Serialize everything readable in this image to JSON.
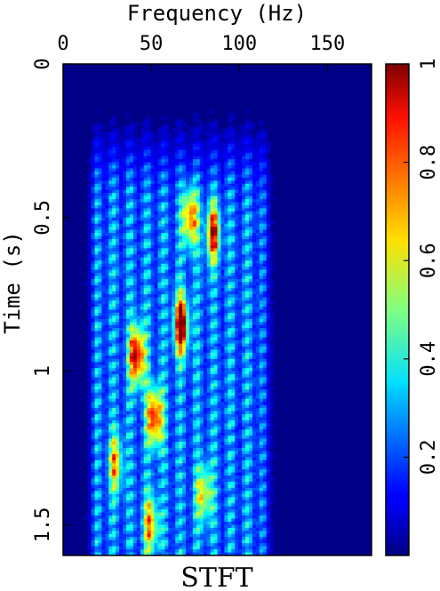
{
  "chart_data": {
    "type": "heatmap",
    "title": "STFT",
    "xlabel": "Frequency (Hz)",
    "ylabel": "Time (s)",
    "x_axis_position": "top",
    "xlim": [
      0,
      175
    ],
    "ylim": [
      1.6,
      0
    ],
    "x_ticks": [
      0,
      50,
      100,
      150
    ],
    "x_tick_labels": [
      "0",
      "50",
      "100",
      "150"
    ],
    "y_ticks": [
      0,
      0.5,
      1,
      1.5
    ],
    "y_tick_labels": [
      "0",
      "0.5",
      "1",
      "1.5"
    ],
    "colorbar": {
      "range": [
        0,
        1
      ],
      "ticks": [
        0.2,
        0.4,
        0.6,
        0.8,
        1
      ],
      "tick_labels": [
        "0.2",
        "0.4",
        "0.6",
        "0.8",
        "1"
      ],
      "colormap": "jet"
    },
    "energy_extent": {
      "freq_hz": [
        20,
        110
      ],
      "time_s": [
        0.3,
        1.6
      ]
    },
    "hotspots": [
      {
        "freq_hz": 42,
        "time_s": 0.95,
        "value": 1.0
      },
      {
        "freq_hz": 52,
        "time_s": 1.15,
        "value": 0.9
      },
      {
        "freq_hz": 67,
        "time_s": 0.85,
        "value": 0.95
      },
      {
        "freq_hz": 72,
        "time_s": 0.5,
        "value": 0.75
      },
      {
        "freq_hz": 85,
        "time_s": 0.55,
        "value": 0.7
      },
      {
        "freq_hz": 50,
        "time_s": 1.5,
        "value": 0.6
      },
      {
        "freq_hz": 80,
        "time_s": 1.4,
        "value": 0.55
      },
      {
        "freq_hz": 30,
        "time_s": 1.3,
        "value": 0.5
      }
    ]
  }
}
